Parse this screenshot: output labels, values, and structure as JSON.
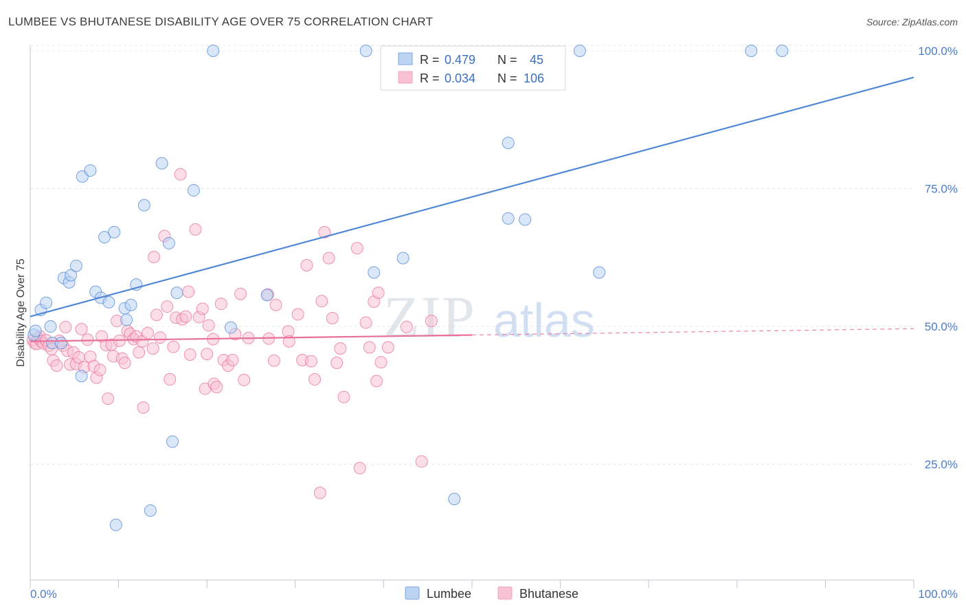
{
  "header": {
    "title": "LUMBEE VS BHUTANESE DISABILITY AGE OVER 75 CORRELATION CHART",
    "source": "Source: ZipAtlas.com"
  },
  "watermark": {
    "zip": "ZIP",
    "atlas": "atlas"
  },
  "legend_box": {
    "rows": [
      {
        "r_label": "R = ",
        "r_value": "0.479",
        "n_label": "N = ",
        "n_value": "45",
        "color": "#7aa6e0"
      },
      {
        "r_label": "R = ",
        "r_value": "0.034",
        "n_label": "N = ",
        "n_value": "106",
        "color": "#f0a3bc"
      }
    ]
  },
  "bottom_legend": [
    {
      "label": "Lumbee",
      "color": "#7aa6e0"
    },
    {
      "label": "Bhutanese",
      "color": "#f0a3bc"
    }
  ],
  "chart_data": {
    "type": "scatter",
    "title": "LUMBEE VS BHUTANESE DISABILITY AGE OVER 75 CORRELATION CHART",
    "xlabel": "",
    "ylabel": "Disability Age Over 75",
    "xlim": [
      0,
      100
    ],
    "ylim": [
      4,
      101
    ],
    "x_tick_labels": [
      "0.0%",
      "100.0%"
    ],
    "y_ticks": [
      25,
      50,
      75,
      100
    ],
    "y_tick_labels": [
      "25.0%",
      "50.0%",
      "75.0%",
      "100.0%"
    ],
    "grid": true,
    "legend_position": "top-center",
    "series": [
      {
        "name": "Lumbee",
        "color": "#4f86d6",
        "fill": "#bcd3f2",
        "trend": {
          "x": [
            0,
            100
          ],
          "y": [
            51.8,
            95.2
          ],
          "dashed_from": null
        },
        "points": [
          [
            0.4,
            48.5
          ],
          [
            0.6,
            49.2
          ],
          [
            1.2,
            53.0
          ],
          [
            1.8,
            54.3
          ],
          [
            2.3,
            50.0
          ],
          [
            2.5,
            47.0
          ],
          [
            3.5,
            47.0
          ],
          [
            3.8,
            58.8
          ],
          [
            4.4,
            58.0
          ],
          [
            4.6,
            59.3
          ],
          [
            5.2,
            61.0
          ],
          [
            5.8,
            41.0
          ],
          [
            5.9,
            77.2
          ],
          [
            6.8,
            78.3
          ],
          [
            7.4,
            56.3
          ],
          [
            8.0,
            55.2
          ],
          [
            8.4,
            66.2
          ],
          [
            8.9,
            54.4
          ],
          [
            9.5,
            67.1
          ],
          [
            9.7,
            14.0
          ],
          [
            10.7,
            53.3
          ],
          [
            10.9,
            51.2
          ],
          [
            11.4,
            53.9
          ],
          [
            12.0,
            57.6
          ],
          [
            12.9,
            72.0
          ],
          [
            13.6,
            16.6
          ],
          [
            14.9,
            79.6
          ],
          [
            15.7,
            65.1
          ],
          [
            16.1,
            29.1
          ],
          [
            16.6,
            56.1
          ],
          [
            18.5,
            74.7
          ],
          [
            20.7,
            100.0
          ],
          [
            22.7,
            49.8
          ],
          [
            26.8,
            55.7
          ],
          [
            38.0,
            100.0
          ],
          [
            38.9,
            59.8
          ],
          [
            42.2,
            62.4
          ],
          [
            48.0,
            18.7
          ],
          [
            54.1,
            83.3
          ],
          [
            54.1,
            69.6
          ],
          [
            56.0,
            69.4
          ],
          [
            62.2,
            100.0
          ],
          [
            64.4,
            59.8
          ],
          [
            81.6,
            100.0
          ],
          [
            85.1,
            100.0
          ]
        ]
      },
      {
        "name": "Bhutanese",
        "color": "#e8709a",
        "fill": "#f7c3d4",
        "trend": {
          "x": [
            0,
            100
          ],
          "y": [
            47.3,
            49.6
          ],
          "dashed_from": 50
        },
        "points": [
          [
            0.3,
            47.5
          ],
          [
            0.5,
            47.0
          ],
          [
            0.7,
            46.8
          ],
          [
            0.9,
            47.9
          ],
          [
            1.1,
            48.2
          ],
          [
            1.3,
            47.3
          ],
          [
            1.5,
            46.9
          ],
          [
            1.8,
            47.5
          ],
          [
            2.1,
            46.5
          ],
          [
            2.4,
            45.9
          ],
          [
            2.6,
            43.8
          ],
          [
            3.0,
            42.9
          ],
          [
            3.3,
            47.4
          ],
          [
            3.7,
            46.5
          ],
          [
            4.0,
            49.9
          ],
          [
            4.2,
            45.6
          ],
          [
            4.5,
            43.1
          ],
          [
            4.9,
            45.3
          ],
          [
            5.2,
            43.2
          ],
          [
            5.5,
            44.4
          ],
          [
            5.8,
            49.5
          ],
          [
            6.1,
            42.6
          ],
          [
            6.5,
            47.6
          ],
          [
            6.8,
            44.5
          ],
          [
            7.2,
            42.8
          ],
          [
            7.5,
            40.7
          ],
          [
            7.9,
            42.1
          ],
          [
            8.1,
            48.2
          ],
          [
            8.6,
            46.6
          ],
          [
            8.8,
            36.9
          ],
          [
            9.2,
            46.7
          ],
          [
            9.4,
            44.6
          ],
          [
            9.8,
            51.0
          ],
          [
            10.1,
            47.4
          ],
          [
            10.4,
            44.2
          ],
          [
            10.7,
            43.4
          ],
          [
            11.0,
            49.2
          ],
          [
            11.3,
            48.7
          ],
          [
            11.7,
            47.7
          ],
          [
            12.0,
            48.2
          ],
          [
            12.3,
            45.3
          ],
          [
            12.7,
            47.3
          ],
          [
            12.8,
            35.3
          ],
          [
            13.3,
            48.8
          ],
          [
            13.9,
            46.0
          ],
          [
            14.0,
            62.6
          ],
          [
            14.3,
            52.1
          ],
          [
            14.7,
            48.0
          ],
          [
            15.2,
            66.4
          ],
          [
            15.5,
            53.6
          ],
          [
            15.8,
            40.4
          ],
          [
            16.2,
            46.3
          ],
          [
            16.5,
            51.6
          ],
          [
            17.0,
            77.6
          ],
          [
            17.2,
            51.3
          ],
          [
            17.6,
            51.8
          ],
          [
            17.9,
            56.3
          ],
          [
            18.1,
            44.9
          ],
          [
            18.7,
            67.6
          ],
          [
            19.1,
            51.7
          ],
          [
            19.5,
            53.2
          ],
          [
            19.8,
            38.7
          ],
          [
            20.0,
            45.0
          ],
          [
            20.2,
            50.2
          ],
          [
            20.7,
            47.7
          ],
          [
            20.8,
            39.6
          ],
          [
            21.1,
            39.0
          ],
          [
            21.6,
            54.1
          ],
          [
            21.9,
            43.9
          ],
          [
            22.4,
            42.9
          ],
          [
            22.9,
            43.9
          ],
          [
            23.2,
            48.6
          ],
          [
            23.8,
            55.9
          ],
          [
            24.2,
            40.3
          ],
          [
            24.7,
            47.9
          ],
          [
            26.9,
            55.8
          ],
          [
            27.0,
            47.8
          ],
          [
            27.6,
            43.8
          ],
          [
            27.8,
            53.9
          ],
          [
            29.2,
            49.1
          ],
          [
            29.3,
            47.3
          ],
          [
            30.3,
            52.2
          ],
          [
            30.8,
            43.9
          ],
          [
            31.3,
            61.1
          ],
          [
            31.8,
            43.7
          ],
          [
            32.2,
            40.4
          ],
          [
            32.8,
            19.8
          ],
          [
            33.0,
            54.6
          ],
          [
            33.3,
            67.1
          ],
          [
            33.8,
            62.4
          ],
          [
            34.2,
            51.5
          ],
          [
            34.7,
            43.4
          ],
          [
            35.1,
            46.0
          ],
          [
            35.5,
            37.2
          ],
          [
            37.0,
            64.2
          ],
          [
            37.3,
            24.3
          ],
          [
            38.0,
            50.7
          ],
          [
            38.4,
            46.2
          ],
          [
            38.9,
            54.5
          ],
          [
            39.2,
            40.1
          ],
          [
            39.4,
            56.1
          ],
          [
            39.7,
            43.5
          ],
          [
            40.5,
            46.2
          ],
          [
            42.6,
            49.9
          ],
          [
            44.3,
            25.5
          ],
          [
            45.4,
            51.0
          ]
        ]
      }
    ]
  }
}
